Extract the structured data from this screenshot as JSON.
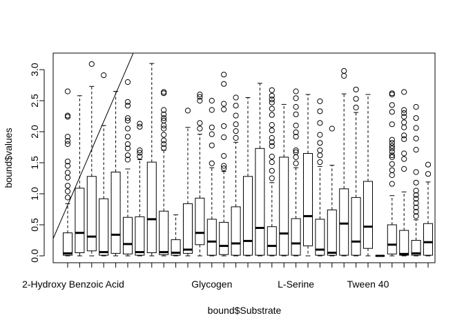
{
  "chart_data": {
    "type": "box",
    "xlabel": "bound$Substrate",
    "ylabel": "bound$values",
    "ylim": [
      -0.05,
      3.25
    ],
    "yticks": [
      0.0,
      0.5,
      1.0,
      1.5,
      2.0,
      2.5,
      3.0
    ],
    "ytick_labels": [
      "0.0",
      "0.5",
      "1.0",
      "1.5",
      "2.0",
      "2.5",
      "3.0"
    ],
    "category_count": 31,
    "visible_category_labels": [
      {
        "index": 1,
        "label": "2-Hydroxy Benzoic Acid"
      },
      {
        "index": 13,
        "label": "Glycogen"
      },
      {
        "index": 20,
        "label": "L-Serine"
      },
      {
        "index": 26,
        "label": "Tween 40"
      }
    ],
    "boxes": [
      {
        "q1": 0.01,
        "median": 0.04,
        "q3": 0.37,
        "wlo": 0.0,
        "whi": 0.84,
        "outliers": [
          0.94,
          1.04,
          1.13,
          1.26,
          1.34,
          1.45,
          1.52,
          1.8,
          1.85,
          1.92,
          2.24,
          2.26,
          2.65
        ]
      },
      {
        "q1": 0.05,
        "median": 0.37,
        "q3": 1.09,
        "wlo": 0.0,
        "whi": 2.58,
        "outliers": []
      },
      {
        "q1": 0.08,
        "median": 0.31,
        "q3": 1.28,
        "wlo": 0.0,
        "whi": 2.73,
        "outliers": [
          3.09
        ]
      },
      {
        "q1": 0.01,
        "median": 0.06,
        "q3": 0.92,
        "wlo": 0.0,
        "whi": 2.1,
        "outliers": [
          2.91
        ]
      },
      {
        "q1": 0.04,
        "median": 0.34,
        "q3": 1.35,
        "wlo": 0.0,
        "whi": 2.65,
        "outliers": []
      },
      {
        "q1": 0.03,
        "median": 0.19,
        "q3": 0.62,
        "wlo": 0.0,
        "whi": 1.4,
        "outliers": [
          1.55,
          1.62,
          1.73,
          1.8,
          1.92,
          2.05,
          2.18,
          2.22,
          2.42,
          2.48,
          2.8
        ]
      },
      {
        "q1": 0.01,
        "median": 0.06,
        "q3": 0.63,
        "wlo": 0.0,
        "whi": 1.55,
        "outliers": [
          1.6,
          1.66,
          1.7,
          2.08,
          2.13
        ]
      },
      {
        "q1": 0.05,
        "median": 0.59,
        "q3": 1.51,
        "wlo": 0.0,
        "whi": 3.1,
        "outliers": []
      },
      {
        "q1": 0.02,
        "median": 0.06,
        "q3": 0.72,
        "wlo": 0.0,
        "whi": 1.7,
        "outliers": [
          1.74,
          1.8,
          1.86,
          1.95,
          2.05,
          2.1,
          2.18,
          2.22,
          2.28,
          2.35,
          2.62,
          2.64
        ]
      },
      {
        "q1": 0.01,
        "median": 0.05,
        "q3": 0.26,
        "wlo": 0.0,
        "whi": 0.66,
        "outliers": []
      },
      {
        "q1": 0.04,
        "median": 0.1,
        "q3": 0.84,
        "wlo": 0.0,
        "whi": 2.07,
        "outliers": [
          2.34
        ]
      },
      {
        "q1": 0.18,
        "median": 0.37,
        "q3": 0.93,
        "wlo": 0.0,
        "whi": 1.96,
        "outliers": [
          2.05,
          2.14,
          2.5,
          2.56,
          2.6
        ]
      },
      {
        "q1": 0.01,
        "median": 0.23,
        "q3": 0.59,
        "wlo": 0.0,
        "whi": 1.42,
        "outliers": [
          1.49,
          1.78,
          1.96,
          2.07,
          2.35,
          2.5
        ]
      },
      {
        "q1": 0.02,
        "median": 0.16,
        "q3": 0.54,
        "wlo": 0.0,
        "whi": 1.36,
        "outliers": [
          1.41,
          1.45,
          1.61,
          1.91,
          2.09,
          2.36,
          2.45,
          2.77,
          2.92
        ]
      },
      {
        "q1": 0.01,
        "median": 0.2,
        "q3": 0.79,
        "wlo": 0.0,
        "whi": 1.83,
        "outliers": [
          1.9,
          2.01,
          2.12,
          2.26,
          2.42,
          2.55
        ]
      },
      {
        "q1": 0.01,
        "median": 0.24,
        "q3": 1.28,
        "wlo": 0.0,
        "whi": 2.55,
        "outliers": []
      },
      {
        "q1": 0.01,
        "median": 0.45,
        "q3": 1.73,
        "wlo": 0.0,
        "whi": 2.78,
        "outliers": []
      },
      {
        "q1": 0.01,
        "median": 0.16,
        "q3": 0.47,
        "wlo": 0.0,
        "whi": 1.18,
        "outliers": [
          1.25,
          1.37,
          1.51,
          1.6,
          1.77,
          1.83,
          1.9,
          2.02,
          2.11,
          2.27,
          2.37,
          2.47,
          2.52,
          2.58,
          2.67
        ]
      },
      {
        "q1": 0.01,
        "median": 0.36,
        "q3": 1.59,
        "wlo": 0.0,
        "whi": 2.44,
        "outliers": []
      },
      {
        "q1": 0.01,
        "median": 0.2,
        "q3": 0.6,
        "wlo": 0.0,
        "whi": 1.42,
        "outliers": [
          1.49,
          1.59,
          1.67,
          1.7,
          1.92,
          1.99,
          2.1,
          2.28,
          2.4,
          2.54,
          2.65
        ]
      },
      {
        "q1": 0.16,
        "median": 0.64,
        "q3": 1.65,
        "wlo": 0.0,
        "whi": 2.6,
        "outliers": []
      },
      {
        "q1": 0.01,
        "median": 0.1,
        "q3": 0.59,
        "wlo": 0.0,
        "whi": 1.44,
        "outliers": [
          1.51,
          1.62,
          1.7,
          1.82,
          1.95,
          2.14,
          2.33,
          2.49
        ]
      },
      {
        "q1": 0.01,
        "median": 0.05,
        "q3": 0.74,
        "wlo": 0.0,
        "whi": 1.46,
        "outliers": [
          2.05
        ]
      },
      {
        "q1": 0.01,
        "median": 0.52,
        "q3": 1.08,
        "wlo": 0.0,
        "whi": 2.61,
        "outliers": [
          2.9,
          2.98
        ]
      },
      {
        "q1": 0.01,
        "median": 0.23,
        "q3": 0.94,
        "wlo": 0.0,
        "whi": 2.31,
        "outliers": [
          2.39,
          2.53,
          2.68
        ]
      },
      {
        "q1": 0.12,
        "median": 0.47,
        "q3": 1.2,
        "wlo": 0.0,
        "whi": 2.6,
        "outliers": []
      },
      {
        "q1": 0.0,
        "median": 0.0,
        "q3": 0.0,
        "wlo": 0.0,
        "whi": 0.0,
        "outliers": []
      },
      {
        "q1": 0.03,
        "median": 0.18,
        "q3": 0.5,
        "wlo": 0.0,
        "whi": 0.97,
        "outliers": [
          1.16,
          1.3,
          1.38,
          1.48,
          1.59,
          1.62,
          1.68,
          1.73,
          1.77,
          1.82,
          1.87,
          2.12,
          2.32,
          2.43,
          2.6,
          2.62
        ]
      },
      {
        "q1": 0.01,
        "median": 0.03,
        "q3": 0.41,
        "wlo": 0.0,
        "whi": 1.03,
        "outliers": [
          1.4,
          1.56,
          1.65,
          1.88,
          1.94,
          2.07,
          2.15,
          2.24,
          2.3,
          2.35,
          2.64
        ]
      },
      {
        "q1": 0.01,
        "median": 0.04,
        "q3": 0.25,
        "wlo": 0.0,
        "whi": 0.58,
        "outliers": [
          0.64,
          0.71,
          0.78,
          0.85,
          0.92,
          0.98,
          1.05,
          1.18,
          1.35,
          1.71,
          1.89,
          2.06,
          2.22,
          2.4
        ]
      },
      {
        "q1": 0.01,
        "median": 0.22,
        "q3": 0.52,
        "wlo": 0.0,
        "whi": 1.19,
        "outliers": [
          1.32,
          1.47
        ]
      }
    ]
  }
}
